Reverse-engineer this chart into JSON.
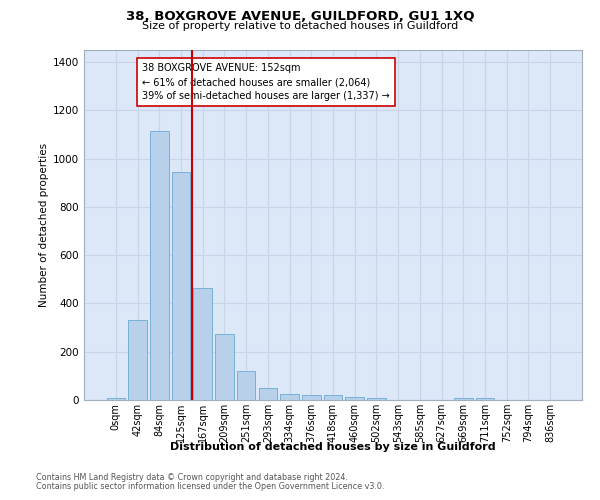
{
  "title1": "38, BOXGROVE AVENUE, GUILDFORD, GU1 1XQ",
  "title2": "Size of property relative to detached houses in Guildford",
  "xlabel": "Distribution of detached houses by size in Guildford",
  "ylabel": "Number of detached properties",
  "footer1": "Contains HM Land Registry data © Crown copyright and database right 2024.",
  "footer2": "Contains public sector information licensed under the Open Government Licence v3.0.",
  "categories": [
    "0sqm",
    "42sqm",
    "84sqm",
    "125sqm",
    "167sqm",
    "209sqm",
    "251sqm",
    "293sqm",
    "334sqm",
    "376sqm",
    "418sqm",
    "460sqm",
    "502sqm",
    "543sqm",
    "585sqm",
    "627sqm",
    "669sqm",
    "711sqm",
    "752sqm",
    "794sqm",
    "836sqm"
  ],
  "values": [
    8,
    330,
    1115,
    945,
    465,
    275,
    120,
    50,
    25,
    22,
    22,
    12,
    8,
    0,
    0,
    0,
    10,
    10,
    0,
    0,
    0
  ],
  "bar_color": "#b8d0ea",
  "bar_edge_color": "#6aaad4",
  "vline_x": 3.5,
  "vline_color": "#cc0000",
  "annotation_text": "38 BOXGROVE AVENUE: 152sqm\n← 61% of detached houses are smaller (2,064)\n39% of semi-detached houses are larger (1,337) →",
  "annotation_box_color": "#ffffff",
  "annotation_box_edge_color": "#cc0000",
  "ylim": [
    0,
    1450
  ],
  "yticks": [
    0,
    200,
    400,
    600,
    800,
    1000,
    1200,
    1400
  ],
  "grid_color": "#c8d4e8",
  "plot_bg_color": "#dce8f8"
}
